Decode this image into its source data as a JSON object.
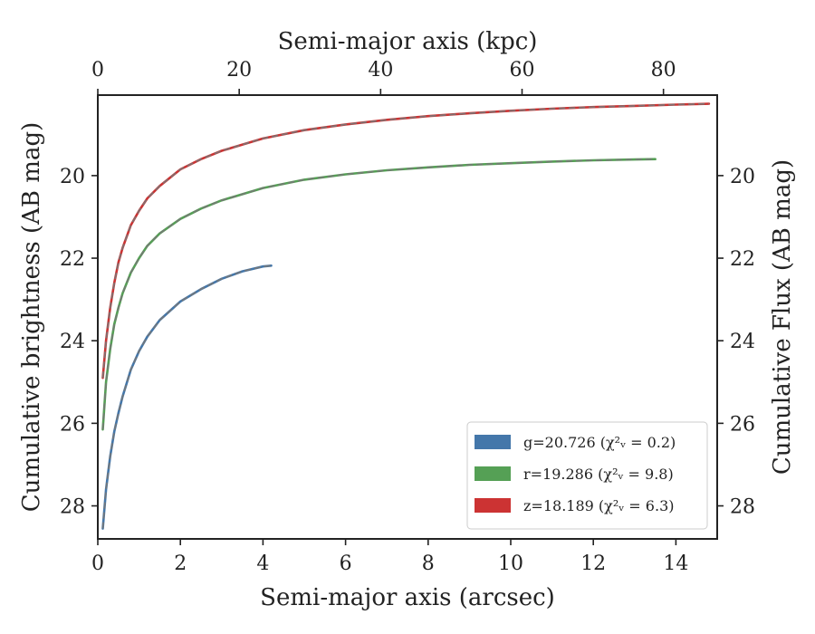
{
  "chart_data": {
    "type": "line",
    "xlabel": "Semi-major axis (arcsec)",
    "ylabel": "Cumulative brightness (AB mag)",
    "x2label": "Semi-major axis (kpc)",
    "y2label": "Cumulative Flux (AB mag)",
    "xlim": [
      0,
      15
    ],
    "ylim": [
      28.8,
      18.05
    ],
    "y_inverted": true,
    "x2lim": [
      0,
      87.6
    ],
    "xticks": [
      "0",
      "2",
      "4",
      "6",
      "8",
      "10",
      "12",
      "14"
    ],
    "yticks": [
      "20",
      "22",
      "24",
      "26",
      "28"
    ],
    "x2ticks": [
      "0",
      "20",
      "40",
      "60",
      "80"
    ],
    "y2ticks": [
      "20",
      "22",
      "24",
      "26",
      "28"
    ],
    "legend_location": "lower-right",
    "grid": false,
    "series": [
      {
        "name": "g=20.726 (χ²ᵥ = 0.2)",
        "color": "#4477aa",
        "model_color": "#777777",
        "x": [
          0.12,
          0.2,
          0.3,
          0.4,
          0.5,
          0.6,
          0.8,
          1.0,
          1.2,
          1.5,
          2.0,
          2.5,
          3.0,
          3.5,
          4.0,
          4.2
        ],
        "y": [
          28.55,
          27.6,
          26.8,
          26.2,
          25.75,
          25.35,
          24.7,
          24.25,
          23.9,
          23.5,
          23.05,
          22.75,
          22.5,
          22.32,
          22.2,
          22.18
        ]
      },
      {
        "name": "r=19.286 (χ²ᵥ = 9.8)",
        "color": "#55a055",
        "model_color": "#777777",
        "x": [
          0.12,
          0.2,
          0.3,
          0.4,
          0.5,
          0.6,
          0.8,
          1.0,
          1.2,
          1.5,
          2.0,
          2.5,
          3.0,
          4.0,
          5.0,
          6.0,
          7.0,
          8.0,
          9.0,
          10.0,
          11.0,
          12.0,
          13.0,
          13.5
        ],
        "y": [
          26.15,
          25.0,
          24.2,
          23.6,
          23.2,
          22.85,
          22.35,
          22.0,
          21.7,
          21.4,
          21.05,
          20.8,
          20.6,
          20.3,
          20.1,
          19.97,
          19.87,
          19.8,
          19.74,
          19.7,
          19.66,
          19.63,
          19.61,
          19.6
        ]
      },
      {
        "name": "z=18.189 (χ²ᵥ = 6.3)",
        "color": "#cc3333",
        "model_color": "#777777",
        "x": [
          0.12,
          0.2,
          0.3,
          0.4,
          0.5,
          0.6,
          0.8,
          1.0,
          1.2,
          1.5,
          2.0,
          2.5,
          3.0,
          4.0,
          5.0,
          6.0,
          7.0,
          8.0,
          9.0,
          10.0,
          11.0,
          12.0,
          13.0,
          14.0,
          14.8
        ],
        "y": [
          24.9,
          24.0,
          23.2,
          22.6,
          22.1,
          21.75,
          21.2,
          20.85,
          20.55,
          20.25,
          19.85,
          19.6,
          19.4,
          19.1,
          18.9,
          18.76,
          18.65,
          18.56,
          18.49,
          18.43,
          18.38,
          18.34,
          18.31,
          18.28,
          18.26
        ]
      }
    ]
  }
}
